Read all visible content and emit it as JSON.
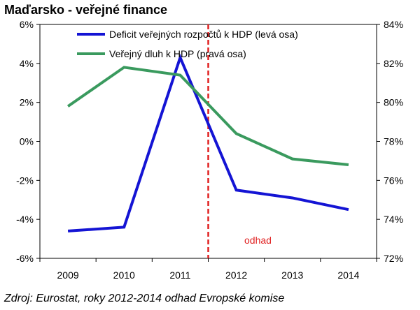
{
  "chart_data": {
    "type": "line",
    "title": "Maďarsko - veřejné finance",
    "categories": [
      "2009",
      "2010",
      "2011",
      "2012",
      "2013",
      "2014"
    ],
    "series": [
      {
        "name": "Deficit veřejných rozpočtů k HDP (levá osa)",
        "axis": "left",
        "color": "#1414D4",
        "values": [
          -4.6,
          -4.4,
          4.3,
          -2.5,
          -2.9,
          -3.5
        ]
      },
      {
        "name": "Veřejný dluh k HDP  (pravá osa)",
        "axis": "right",
        "color": "#3A9A5E",
        "values": [
          79.8,
          81.8,
          81.4,
          78.4,
          77.1,
          76.8
        ]
      }
    ],
    "left_axis": {
      "ylim": [
        -6,
        6
      ],
      "ticks": [
        6,
        4,
        2,
        0,
        -2,
        -4,
        -6
      ],
      "tick_labels": [
        "6%",
        "4%",
        "2%",
        "0%",
        "-2%",
        "-4%",
        "-6%"
      ]
    },
    "right_axis": {
      "ylim": [
        72,
        84
      ],
      "ticks": [
        84,
        82,
        80,
        78,
        76,
        74,
        72
      ],
      "tick_labels": [
        "84%",
        "82%",
        "80%",
        "78%",
        "76%",
        "74%",
        "72%"
      ]
    },
    "annotation": {
      "text": "odhad",
      "color": "#E02020",
      "divider_x": 2.5
    },
    "grid": false,
    "legend": "top"
  },
  "source": "Zdroj: Eurostat, roky 2012-2014 odhad Evropské komise"
}
